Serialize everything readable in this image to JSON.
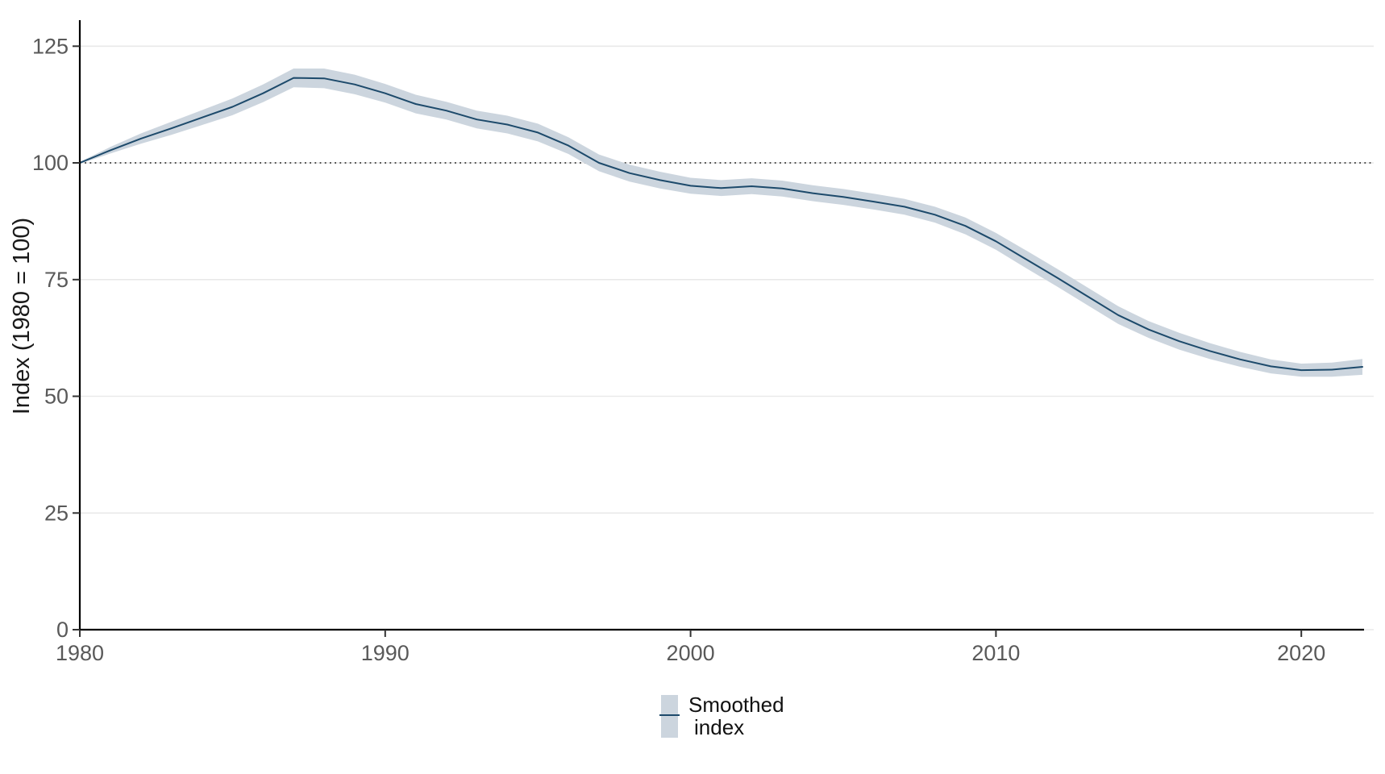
{
  "figure": {
    "background": "#ffffff"
  },
  "chart_data": {
    "type": "line",
    "title": "",
    "xlabel": "",
    "ylabel": "Index (1980 = 100)",
    "xlim": [
      1980,
      2022
    ],
    "ylim": [
      0,
      131
    ],
    "x_ticks": [
      1980,
      1990,
      2000,
      2010,
      2020
    ],
    "y_ticks": [
      0,
      25,
      50,
      75,
      100,
      125
    ],
    "grid": "horizontal-light",
    "legend_position": "bottom-center",
    "reference_line": {
      "y": 100,
      "style": "dotted",
      "color": "#1a1a1a"
    },
    "legend": {
      "label": "Smoothed index",
      "label_lines": [
        "Smoothed",
        "index"
      ]
    },
    "series": [
      {
        "name": "Smoothed index",
        "line_color": "#1d4a6b",
        "band_color": "#ccd5de",
        "x": [
          1980,
          1981,
          1982,
          1983,
          1984,
          1985,
          1986,
          1987,
          1988,
          1989,
          1990,
          1991,
          1992,
          1993,
          1994,
          1995,
          1996,
          1997,
          1998,
          1999,
          2000,
          2001,
          2002,
          2003,
          2004,
          2005,
          2006,
          2007,
          2008,
          2009,
          2010,
          2011,
          2012,
          2013,
          2014,
          2015,
          2016,
          2017,
          2018,
          2019,
          2020,
          2021,
          2022
        ],
        "y": [
          100.0,
          102.7,
          105.2,
          107.4,
          109.7,
          112.0,
          114.9,
          118.2,
          118.1,
          116.8,
          114.9,
          112.6,
          111.2,
          109.3,
          108.2,
          106.5,
          103.7,
          100.0,
          97.8,
          96.3,
          95.1,
          94.6,
          95.0,
          94.5,
          93.5,
          92.7,
          91.7,
          90.6,
          88.9,
          86.5,
          83.2,
          79.3,
          75.4,
          71.4,
          67.4,
          64.3,
          61.8,
          59.7,
          57.9,
          56.4,
          55.6,
          55.7,
          56.3
        ],
        "band_halfwidth": [
          0.2,
          0.7,
          1.1,
          1.4,
          1.6,
          1.8,
          1.9,
          2.0,
          2.1,
          2.1,
          2.0,
          2.0,
          1.9,
          1.9,
          1.9,
          1.9,
          1.8,
          1.8,
          1.8,
          1.8,
          1.7,
          1.7,
          1.7,
          1.7,
          1.7,
          1.7,
          1.7,
          1.7,
          1.7,
          1.8,
          1.8,
          1.9,
          1.9,
          1.9,
          1.9,
          1.8,
          1.8,
          1.7,
          1.6,
          1.5,
          1.4,
          1.5,
          1.7
        ]
      }
    ],
    "colors": {
      "axis": "#000000",
      "tick": "#333333",
      "tick_text": "#595959",
      "grid": "#e9e9e9",
      "label_text": "#1a1a1a"
    }
  }
}
